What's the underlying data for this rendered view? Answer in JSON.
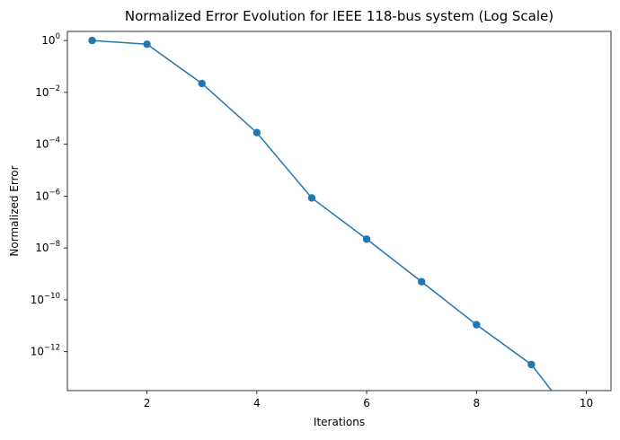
{
  "chart_data": {
    "type": "line",
    "title": "Normalized Error Evolution for IEEE 118-bus system (Log Scale)",
    "xlabel": "Iterations",
    "ylabel": "Normalized Error",
    "yscale": "log",
    "xlim": [
      0.55,
      10.45
    ],
    "ylim_log10": [
      -13.5,
      0.35
    ],
    "xticks": [
      2,
      4,
      6,
      8,
      10
    ],
    "yticks_exponent": [
      0,
      -2,
      -4,
      -6,
      -8,
      -10,
      -12
    ],
    "grid": false,
    "series": [
      {
        "color": "#1f77b4",
        "marker": "circle",
        "x": [
          1,
          2,
          3,
          4,
          5,
          6,
          7,
          8,
          9,
          10
        ],
        "y": [
          1.0,
          0.72,
          0.022,
          0.00028,
          8.5e-07,
          2.2e-08,
          5e-10,
          1.1e-11,
          3.2e-13,
          0
        ]
      }
    ]
  }
}
